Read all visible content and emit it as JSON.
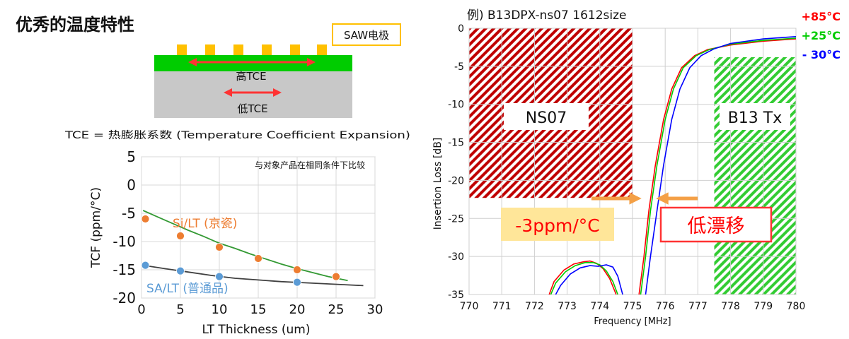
{
  "page": {
    "heading": "优秀的温度特性"
  },
  "structure": {
    "electrode_label": "SAW电极",
    "upper_layer_label": "高TCE",
    "lower_layer_label": "低TCE",
    "tce_definition": "TCE = 热膨胀系数 (Temperature Coefficient Expansion)",
    "colors": {
      "electrode": "#ffc000",
      "upper_layer": "#00cc00",
      "substrate": "#c8c8c8",
      "arrow": "#ff3333"
    }
  },
  "chart_data": [
    {
      "type": "scatter",
      "title": "",
      "note": "与对象产品在相同条件下比较",
      "xlabel": "LT Thickness (um)",
      "ylabel": "TCF (ppm/°C)",
      "xlim": [
        0,
        30
      ],
      "ylim": [
        -20,
        5
      ],
      "x_ticks": [
        0,
        5,
        10,
        15,
        20,
        25,
        30
      ],
      "y_ticks": [
        5,
        0,
        -5,
        -10,
        -15,
        -20
      ],
      "grid": true,
      "series": [
        {
          "name": "Si/LT (京瓷)",
          "color": "#ed7d31",
          "trend_color": "#339933",
          "points": [
            [
              0.5,
              -6.0
            ],
            [
              5,
              -9.0
            ],
            [
              10,
              -11.0
            ],
            [
              15,
              -13.0
            ],
            [
              20,
              -15.0
            ],
            [
              25,
              -16.2
            ]
          ],
          "trend": [
            [
              0.2,
              -4.5
            ],
            [
              2,
              -5.6
            ],
            [
              4,
              -6.8
            ],
            [
              6,
              -8.0
            ],
            [
              8,
              -9.1
            ],
            [
              10,
              -10.3
            ],
            [
              12,
              -11.2
            ],
            [
              14,
              -12.2
            ],
            [
              16,
              -13.1
            ],
            [
              18,
              -14.0
            ],
            [
              20,
              -14.8
            ],
            [
              22,
              -15.5
            ],
            [
              24,
              -16.2
            ],
            [
              26.5,
              -16.9
            ]
          ]
        },
        {
          "name": "SA/LT (普通品)",
          "color": "#5b9bd5",
          "trend_color": "#404040",
          "points": [
            [
              0.5,
              -14.2
            ],
            [
              5,
              -15.2
            ],
            [
              10,
              -16.2
            ],
            [
              20,
              -17.2
            ]
          ],
          "trend": [
            [
              0.2,
              -14.2
            ],
            [
              3,
              -14.8
            ],
            [
              6,
              -15.4
            ],
            [
              9,
              -16.0
            ],
            [
              12,
              -16.5
            ],
            [
              15,
              -16.8
            ],
            [
              18,
              -17.1
            ],
            [
              21,
              -17.3
            ],
            [
              24,
              -17.5
            ],
            [
              27,
              -17.7
            ],
            [
              28.5,
              -17.8
            ]
          ]
        }
      ]
    },
    {
      "type": "line",
      "title": "例) B13DPX-ns07 1612size",
      "xlabel": "Frequency [MHz]",
      "ylabel": "Insertion Loss [dB]",
      "xlim": [
        770,
        780
      ],
      "ylim": [
        -35,
        0
      ],
      "x_ticks": [
        770,
        771,
        772,
        773,
        774,
        775,
        776,
        777,
        778,
        779,
        780
      ],
      "y_ticks": [
        0,
        -5,
        -10,
        -15,
        -20,
        -25,
        -30,
        -35
      ],
      "grid": true,
      "regions": [
        {
          "label": "NS07",
          "x_range": [
            770,
            775
          ],
          "y_range": [
            -22.3,
            0
          ],
          "color": "#c00000"
        },
        {
          "label": "B13 Tx",
          "x_range": [
            777.5,
            780
          ],
          "y_range": [
            -35,
            -3.8
          ],
          "color": "#33cc33"
        }
      ],
      "annotations": {
        "drift_value": "-3ppm/°C",
        "drift_label": "低漂移",
        "arrow_color": "#f4a046",
        "drift_value_bg": "#ffe699",
        "drift_value_color": "#ff0000",
        "drift_label_border": "#ff3333",
        "drift_label_color": "#ff0000"
      },
      "series": [
        {
          "name": "+85°C",
          "color": "#ff0000",
          "values": [
            [
              772.45,
              -35
            ],
            [
              772.6,
              -33.3
            ],
            [
              772.9,
              -31.8
            ],
            [
              773.2,
              -31.0
            ],
            [
              773.5,
              -30.7
            ],
            [
              773.7,
              -30.6
            ],
            [
              773.9,
              -30.9
            ],
            [
              774.1,
              -31.6
            ],
            [
              774.3,
              -32.9
            ],
            [
              774.5,
              -35
            ]
          ],
          "values_b": [
            [
              775.2,
              -35
            ],
            [
              775.35,
              -30
            ],
            [
              775.5,
              -24
            ],
            [
              775.7,
              -18
            ],
            [
              775.95,
              -12
            ],
            [
              776.2,
              -8
            ],
            [
              776.5,
              -5.2
            ],
            [
              776.9,
              -3.6
            ],
            [
              777.3,
              -2.8
            ],
            [
              778,
              -2.2
            ],
            [
              779,
              -1.7
            ],
            [
              780,
              -1.4
            ]
          ]
        },
        {
          "name": "+25°C",
          "color": "#00cc00",
          "values": [
            [
              772.5,
              -35
            ],
            [
              772.65,
              -33.5
            ],
            [
              772.95,
              -32.0
            ],
            [
              773.25,
              -31.2
            ],
            [
              773.55,
              -30.8
            ],
            [
              773.8,
              -30.8
            ],
            [
              774.0,
              -31.1
            ],
            [
              774.2,
              -31.9
            ],
            [
              774.4,
              -33.3
            ],
            [
              774.55,
              -35
            ]
          ],
          "values_b": [
            [
              775.25,
              -35
            ],
            [
              775.4,
              -30
            ],
            [
              775.55,
              -24
            ],
            [
              775.75,
              -18
            ],
            [
              776.0,
              -12
            ],
            [
              776.25,
              -8
            ],
            [
              776.55,
              -5.2
            ],
            [
              776.95,
              -3.6
            ],
            [
              777.35,
              -2.8
            ],
            [
              778,
              -2.1
            ],
            [
              779,
              -1.6
            ],
            [
              780,
              -1.3
            ]
          ]
        },
        {
          "name": "- 30°C",
          "color": "#0000ff",
          "values": [
            [
              772.65,
              -35
            ],
            [
              772.8,
              -33.8
            ],
            [
              773.1,
              -32.3
            ],
            [
              773.4,
              -31.5
            ],
            [
              773.7,
              -31.2
            ],
            [
              773.95,
              -31.3
            ],
            [
              774.2,
              -31.1
            ],
            [
              774.4,
              -31.4
            ],
            [
              774.55,
              -32.6
            ],
            [
              774.7,
              -35
            ]
          ],
          "values_b": [
            [
              775.4,
              -35
            ],
            [
              775.55,
              -30
            ],
            [
              775.75,
              -24
            ],
            [
              775.95,
              -18
            ],
            [
              776.2,
              -12
            ],
            [
              776.45,
              -8
            ],
            [
              776.75,
              -5.2
            ],
            [
              777.1,
              -3.6
            ],
            [
              777.5,
              -2.7
            ],
            [
              778,
              -2.0
            ],
            [
              779,
              -1.4
            ],
            [
              780,
              -1.1
            ]
          ]
        }
      ]
    }
  ]
}
